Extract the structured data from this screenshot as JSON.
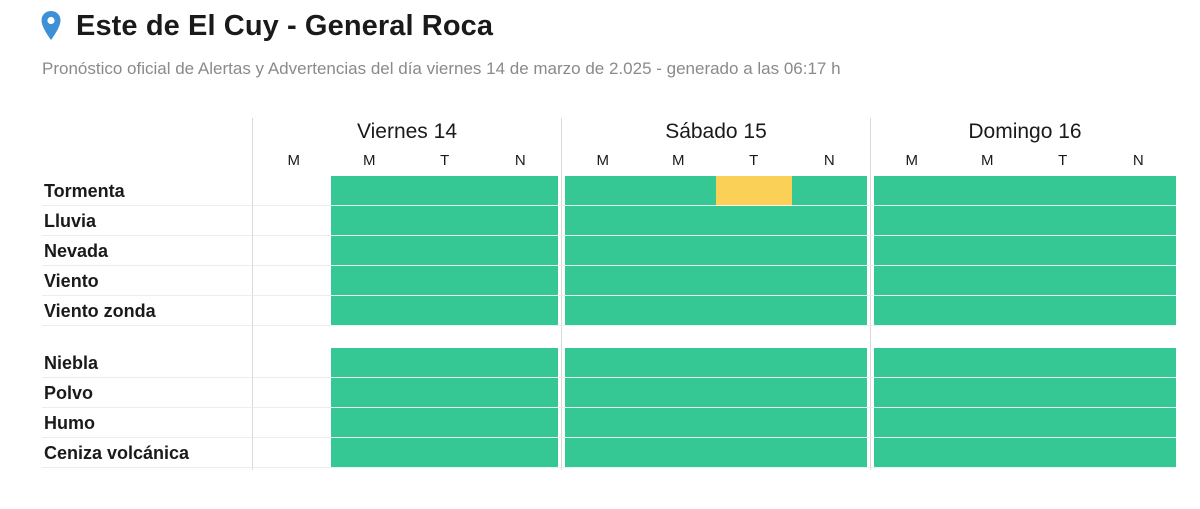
{
  "header": {
    "icon": "location-pin-icon",
    "title": "Este de El Cuy - General Roca",
    "subtitle": "Pronóstico oficial de Alertas y Advertencias del día viernes 14 de marzo de 2.025 - generado a las 06:17 h"
  },
  "days": [
    {
      "label": "Viernes 14"
    },
    {
      "label": "Sábado 15"
    },
    {
      "label": "Domingo 16"
    }
  ],
  "periods": [
    "M",
    "M",
    "T",
    "N",
    "M",
    "M",
    "T",
    "N",
    "M",
    "M",
    "T",
    "N"
  ],
  "rows": [
    {
      "label": "Tormenta"
    },
    {
      "label": "Lluvia"
    },
    {
      "label": "Nevada"
    },
    {
      "label": "Viento"
    },
    {
      "label": "Viento zonda"
    },
    {
      "label": "Niebla"
    },
    {
      "label": "Polvo"
    },
    {
      "label": "Humo"
    },
    {
      "label": "Ceniza volcánica"
    }
  ],
  "levels": {
    "Tormenta": [
      "none",
      "green",
      "green",
      "green",
      "green",
      "green",
      "yellow",
      "green",
      "green",
      "green",
      "green",
      "green"
    ],
    "Lluvia": [
      "none",
      "green",
      "green",
      "green",
      "green",
      "green",
      "green",
      "green",
      "green",
      "green",
      "green",
      "green"
    ],
    "Nevada": [
      "none",
      "green",
      "green",
      "green",
      "green",
      "green",
      "green",
      "green",
      "green",
      "green",
      "green",
      "green"
    ],
    "Viento": [
      "none",
      "green",
      "green",
      "green",
      "green",
      "green",
      "green",
      "green",
      "green",
      "green",
      "green",
      "green"
    ],
    "Viento zonda": [
      "none",
      "green",
      "green",
      "green",
      "green",
      "green",
      "green",
      "green",
      "green",
      "green",
      "green",
      "green"
    ],
    "Niebla": [
      "none",
      "green",
      "green",
      "green",
      "green",
      "green",
      "green",
      "green",
      "green",
      "green",
      "green",
      "green"
    ],
    "Polvo": [
      "none",
      "green",
      "green",
      "green",
      "green",
      "green",
      "green",
      "green",
      "green",
      "green",
      "green",
      "green"
    ],
    "Humo": [
      "none",
      "green",
      "green",
      "green",
      "green",
      "green",
      "green",
      "green",
      "green",
      "green",
      "green",
      "green"
    ],
    "Ceniza volcánica": [
      "none",
      "green",
      "green",
      "green",
      "green",
      "green",
      "green",
      "green",
      "green",
      "green",
      "green",
      "green"
    ]
  },
  "colors": {
    "green": "#35c894",
    "yellow": "#fbd056",
    "pin": "#3d8fd6"
  }
}
